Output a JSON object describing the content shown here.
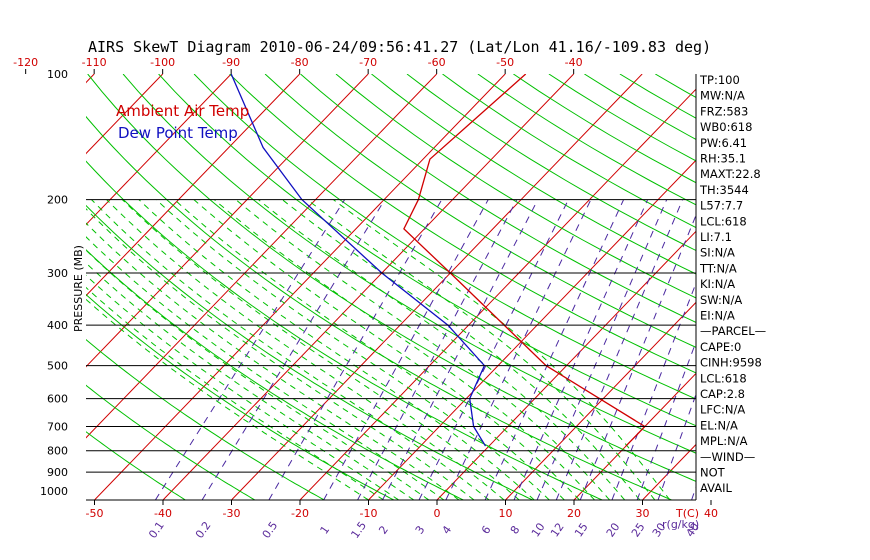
{
  "chart_data": {
    "type": "line",
    "title": "AIRS SkewT Diagram 2010-06-24/09:56:41.27 (Lat/Lon 41.16/-109.83 deg)",
    "ylabel": "PRESSURE (MB)",
    "y_scale": "log",
    "ylim": [
      1050,
      100
    ],
    "x_top_label": "",
    "x_bottom_label": "T(C)",
    "mixing_ratio_label": "r(g/kg)",
    "pressure_ticks": [
      100,
      200,
      300,
      400,
      500,
      600,
      700,
      800,
      900,
      1000
    ],
    "pressure_lines": [
      200,
      300,
      400,
      500,
      600,
      700,
      800,
      900
    ],
    "temp_ticks_top": [
      -120,
      -110,
      -100,
      -90,
      -80,
      -70,
      -60,
      -50,
      -40
    ],
    "temp_ticks_bottom": [
      -50,
      -40,
      -30,
      -20,
      -10,
      0,
      10,
      20,
      30,
      40
    ],
    "mixing_ratio_labels": [
      "0.1",
      "0.2",
      "0.5",
      "1",
      "1.5",
      "2",
      "3",
      "4",
      "6",
      "8",
      "10",
      "12",
      "15",
      "20",
      "25",
      "30",
      "40"
    ],
    "legend": [
      {
        "name": "Ambient Air Temp",
        "color": "#d00000"
      },
      {
        "name": "Dew Point Temp",
        "color": "#1010c0"
      }
    ],
    "series": [
      {
        "name": "Ambient Air Temp",
        "color": "#d00000",
        "points": [
          {
            "p": 780,
            "t": 20
          },
          {
            "p": 700,
            "t": 20
          },
          {
            "p": 500,
            "t": -3
          },
          {
            "p": 300,
            "t": -30
          },
          {
            "p": 235,
            "t": -43
          },
          {
            "p": 200,
            "t": -45
          },
          {
            "p": 160,
            "t": -49
          },
          {
            "p": 100,
            "t": -47
          }
        ]
      },
      {
        "name": "Dew Point Temp",
        "color": "#1010c0",
        "points": [
          {
            "p": 780,
            "t": -0.5
          },
          {
            "p": 700,
            "t": -5
          },
          {
            "p": 600,
            "t": -9.5
          },
          {
            "p": 500,
            "t": -12
          },
          {
            "p": 400,
            "t": -23
          },
          {
            "p": 300,
            "t": -40
          },
          {
            "p": 200,
            "t": -62
          },
          {
            "p": 150,
            "t": -75
          },
          {
            "p": 100,
            "t": -90
          }
        ]
      }
    ]
  },
  "indices": [
    "TP:100",
    "MW:N/A",
    "FRZ:583",
    "WB0:618",
    "PW:6.41",
    "RH:35.1",
    "MAXT:22.8",
    "TH:3544",
    "L57:7.7",
    "LCL:618",
    "LI:7.1",
    "SI:N/A",
    "TT:N/A",
    "KI:N/A",
    "SW:N/A",
    "EI:N/A",
    "—PARCEL—",
    "CAPE:0",
    "CINH:9598",
    "LCL:618",
    "CAP:2.8",
    "LFC:N/A",
    "EL:N/A",
    "MPL:N/A",
    "—WIND—",
    "NOT",
    "AVAIL"
  ],
  "colors": {
    "isotherm": "#d00000",
    "dry_adiabat": "#00c000",
    "moist_adiabat": "#00c000",
    "mixing_ratio": "#4a28a0",
    "temp_profile": "#d00000",
    "dewpoint_profile": "#1010c0"
  }
}
